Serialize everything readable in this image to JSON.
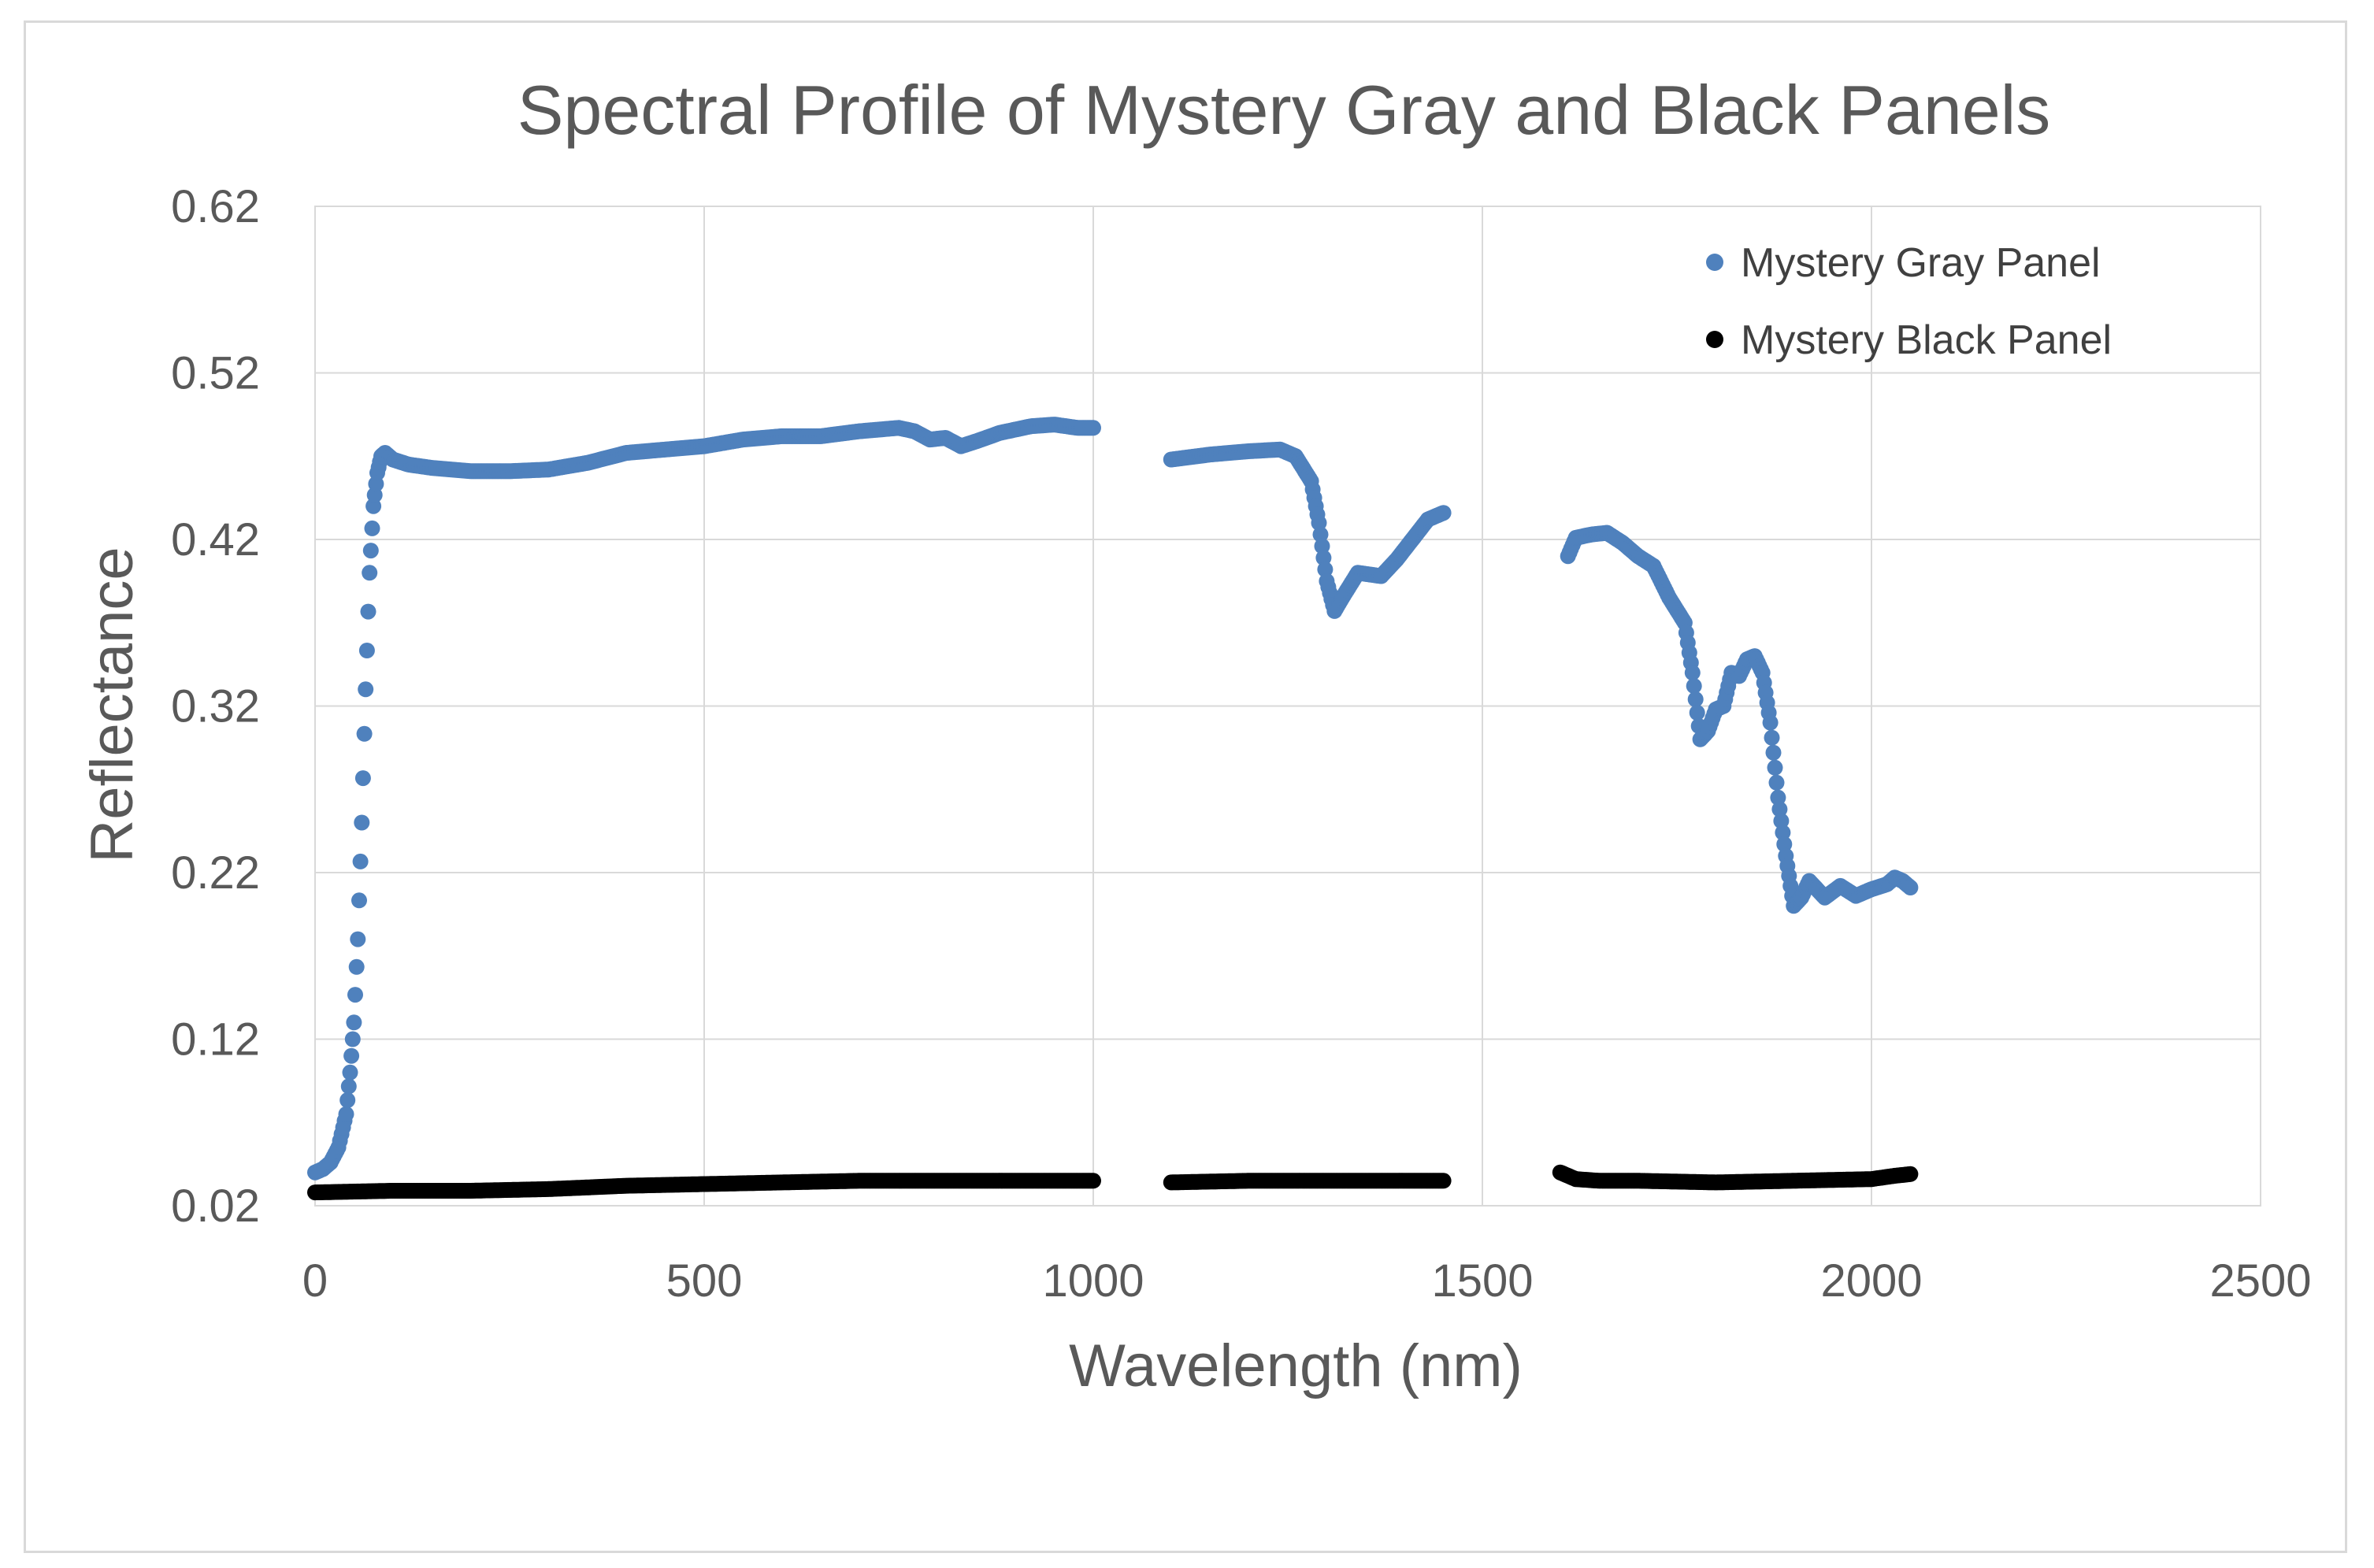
{
  "chart_data": {
    "type": "scatter",
    "title": "Spectral Profile of Mystery Gray and Black Panels",
    "xlabel": "Wavelength (nm)",
    "ylabel": "Reflectance",
    "xlim": [
      0,
      2500
    ],
    "ylim": [
      0.02,
      0.62
    ],
    "x_ticks": [
      0,
      500,
      1000,
      1500,
      2000,
      2500
    ],
    "y_ticks": [
      0.02,
      0.12,
      0.22,
      0.32,
      0.42,
      0.52,
      0.62
    ],
    "grid": true,
    "legend_position": "top-right",
    "series": [
      {
        "name": "Mystery Gray Panel",
        "color": "#4f81bd",
        "segments": [
          [
            [
              0,
              0.04
            ],
            [
              10,
              0.042
            ],
            [
              20,
              0.046
            ],
            [
              30,
              0.055
            ],
            [
              40,
              0.075
            ],
            [
              45,
              0.1
            ],
            [
              50,
              0.13
            ],
            [
              55,
              0.18
            ],
            [
              60,
              0.25
            ],
            [
              65,
              0.33
            ],
            [
              70,
              0.4
            ],
            [
              75,
              0.44
            ],
            [
              80,
              0.46
            ],
            [
              85,
              0.47
            ],
            [
              90,
              0.472
            ],
            [
              100,
              0.468
            ],
            [
              120,
              0.465
            ],
            [
              150,
              0.463
            ],
            [
              200,
              0.461
            ],
            [
              250,
              0.461
            ],
            [
              300,
              0.462
            ],
            [
              350,
              0.466
            ],
            [
              400,
              0.472
            ],
            [
              450,
              0.474
            ],
            [
              500,
              0.476
            ],
            [
              550,
              0.48
            ],
            [
              600,
              0.482
            ],
            [
              650,
              0.482
            ],
            [
              700,
              0.485
            ],
            [
              750,
              0.487
            ],
            [
              770,
              0.485
            ],
            [
              790,
              0.48
            ],
            [
              810,
              0.481
            ],
            [
              830,
              0.476
            ],
            [
              850,
              0.479
            ],
            [
              880,
              0.484
            ],
            [
              920,
              0.488
            ],
            [
              950,
              0.489
            ],
            [
              980,
              0.487
            ],
            [
              1000,
              0.487
            ]
          ],
          [
            [
              1100,
              0.468
            ],
            [
              1150,
              0.471
            ],
            [
              1200,
              0.473
            ],
            [
              1240,
              0.474
            ],
            [
              1260,
              0.47
            ],
            [
              1280,
              0.455
            ],
            [
              1290,
              0.43
            ],
            [
              1300,
              0.395
            ],
            [
              1310,
              0.377
            ],
            [
              1320,
              0.385
            ],
            [
              1340,
              0.4
            ],
            [
              1370,
              0.398
            ],
            [
              1390,
              0.408
            ],
            [
              1410,
              0.42
            ],
            [
              1430,
              0.432
            ],
            [
              1450,
              0.436
            ]
          ],
          [
            [
              1610,
              0.41
            ],
            [
              1620,
              0.421
            ],
            [
              1640,
              0.423
            ],
            [
              1660,
              0.424
            ],
            [
              1680,
              0.418
            ],
            [
              1700,
              0.41
            ],
            [
              1720,
              0.404
            ],
            [
              1740,
              0.385
            ],
            [
              1760,
              0.37
            ],
            [
              1770,
              0.34
            ],
            [
              1780,
              0.3
            ],
            [
              1790,
              0.305
            ],
            [
              1800,
              0.318
            ],
            [
              1810,
              0.32
            ],
            [
              1820,
              0.34
            ],
            [
              1830,
              0.338
            ],
            [
              1840,
              0.348
            ],
            [
              1850,
              0.35
            ],
            [
              1860,
              0.34
            ],
            [
              1870,
              0.31
            ],
            [
              1880,
              0.265
            ],
            [
              1890,
              0.23
            ],
            [
              1900,
              0.2
            ],
            [
              1910,
              0.205
            ],
            [
              1920,
              0.215
            ],
            [
              1940,
              0.205
            ],
            [
              1960,
              0.212
            ],
            [
              1980,
              0.206
            ],
            [
              2000,
              0.21
            ],
            [
              2020,
              0.213
            ],
            [
              2030,
              0.217
            ],
            [
              2040,
              0.215
            ],
            [
              2050,
              0.211
            ]
          ]
        ]
      },
      {
        "name": "Mystery Black Panel",
        "color": "#000000",
        "segments": [
          [
            [
              0,
              0.028
            ],
            [
              100,
              0.029
            ],
            [
              200,
              0.029
            ],
            [
              300,
              0.03
            ],
            [
              400,
              0.032
            ],
            [
              500,
              0.033
            ],
            [
              600,
              0.034
            ],
            [
              700,
              0.035
            ],
            [
              800,
              0.035
            ],
            [
              900,
              0.035
            ],
            [
              1000,
              0.035
            ]
          ],
          [
            [
              1100,
              0.034
            ],
            [
              1200,
              0.035
            ],
            [
              1300,
              0.035
            ],
            [
              1400,
              0.035
            ],
            [
              1450,
              0.035
            ]
          ],
          [
            [
              1600,
              0.04
            ],
            [
              1620,
              0.036
            ],
            [
              1650,
              0.035
            ],
            [
              1700,
              0.035
            ],
            [
              1800,
              0.034
            ],
            [
              1900,
              0.035
            ],
            [
              2000,
              0.036
            ],
            [
              2030,
              0.038
            ],
            [
              2050,
              0.039
            ]
          ]
        ]
      }
    ]
  }
}
